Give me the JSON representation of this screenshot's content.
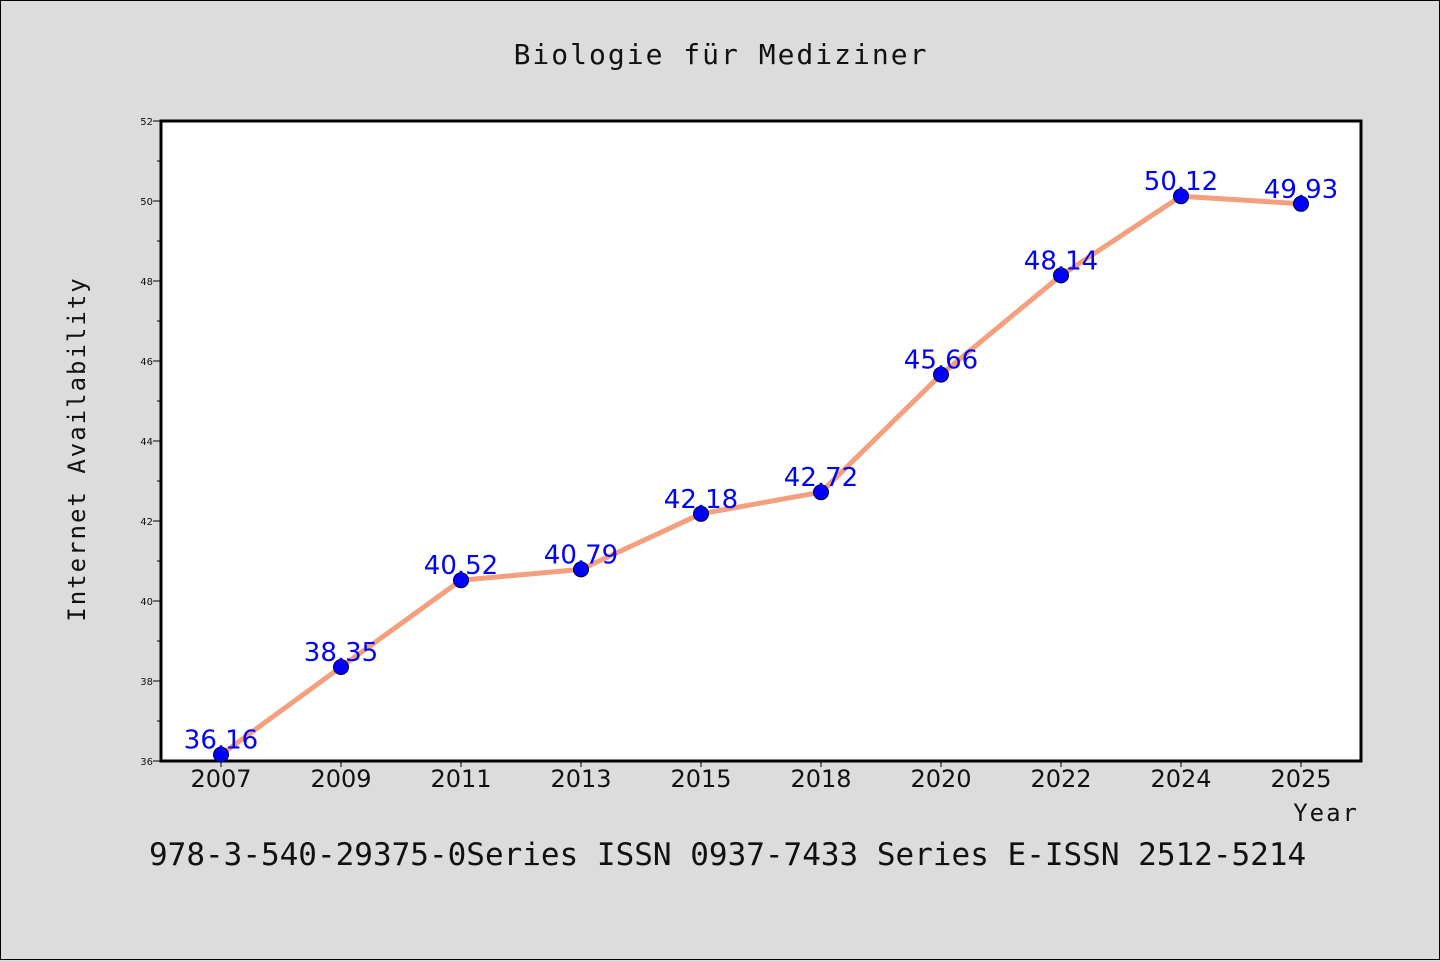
{
  "chart_data": {
    "type": "line",
    "title": "Biologie für Mediziner",
    "xlabel": "Year",
    "ylabel": "Internet Availability",
    "categories": [
      "2007",
      "2009",
      "2011",
      "2013",
      "2015",
      "2018",
      "2020",
      "2022",
      "2024",
      "2025"
    ],
    "series": [
      {
        "values": [
          36.16,
          38.35,
          40.52,
          40.79,
          42.18,
          42.72,
          45.66,
          48.14,
          50.12,
          49.93
        ],
        "labels": [
          "36.16",
          "38.35",
          "40.52",
          "40.79",
          "42.18",
          "42.72",
          "45.66",
          "48.14",
          "50.12",
          "49.93"
        ]
      }
    ],
    "ylim": [
      36,
      52
    ],
    "yticks": [
      "36",
      "38",
      "40",
      "42",
      "44",
      "46",
      "48",
      "50",
      "52"
    ],
    "grid": false,
    "colors": {
      "line": "#f4a07e",
      "marker": "#0000ff",
      "data_label": "#0000ff",
      "background": "#dcdcdc",
      "plot_background": "#ffffff"
    }
  },
  "footer": "978-3-540-29375-0Series ISSN 0937-7433 Series E-ISSN 2512-5214"
}
